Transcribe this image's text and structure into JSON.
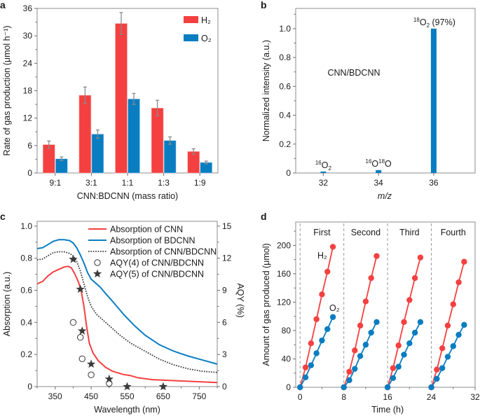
{
  "colors": {
    "red": "#f44040",
    "blue": "#0a7dc1",
    "dark": "#333333",
    "err": "#8a8a8a",
    "dash": "#9a9a9a"
  },
  "chart_data": [
    {
      "panel": "a",
      "type": "bar",
      "xlabel": "CNN:BDCNN (mass ratio)",
      "ylabel": "Rate of gas production (μmol h⁻¹)",
      "categories": [
        "9:1",
        "3:1",
        "1:1",
        "1:3",
        "1:9"
      ],
      "ylim": [
        0,
        36
      ],
      "yticks": [
        0,
        6,
        12,
        18,
        24,
        30,
        36
      ],
      "legend_position": "top-right",
      "series": [
        {
          "name": "H₂",
          "color_key": "red",
          "values": [
            6.2,
            17.0,
            32.7,
            14.2,
            4.7
          ],
          "errors": [
            0.8,
            1.8,
            2.4,
            1.7,
            0.6
          ]
        },
        {
          "name": "O₂",
          "color_key": "blue",
          "values": [
            3.1,
            8.5,
            16.2,
            7.1,
            2.3
          ],
          "errors": [
            0.4,
            0.9,
            1.2,
            0.8,
            0.3
          ]
        }
      ]
    },
    {
      "panel": "b",
      "type": "bar",
      "xlabel": "m/z",
      "ylabel": "Normalized intensity (a.u.)",
      "annotation": "CNN/BDCNN",
      "xlim": [
        31,
        37.5
      ],
      "ylim": [
        0,
        1.14
      ],
      "xticks": [
        32,
        34,
        36
      ],
      "yticks": [
        0,
        0.2,
        0.4,
        0.6,
        0.8,
        1.0
      ],
      "ytick_labels": [
        "0",
        "0.2",
        "0.4",
        "0.6",
        "0.8",
        "1.0"
      ],
      "x": [
        32,
        34,
        36
      ],
      "values": [
        0.01,
        0.02,
        1.0
      ],
      "bar_labels": [
        {
          "pre": "16",
          "main": "O",
          "sub": "2",
          "post": ""
        },
        {
          "pre": "16",
          "main": "O",
          "sup2": "18",
          "main2": "O",
          "post": ""
        },
        {
          "pre": "18",
          "main": "O",
          "sub": "2",
          "post": " (97%)"
        }
      ]
    },
    {
      "panel": "c",
      "type": "line",
      "xlabel": "Wavelength (nm)",
      "ylabel": "Absorption (a.u.)",
      "y2label": "AQY (%)",
      "xlim": [
        300,
        800
      ],
      "ylim": [
        0,
        1.03
      ],
      "y2lim": [
        0,
        15.45
      ],
      "xticks": [
        350,
        450,
        550,
        650,
        750
      ],
      "yticks": [
        0,
        0.2,
        0.4,
        0.6,
        0.8,
        1.0
      ],
      "ytick_labels": [
        "0",
        "0.2",
        "0.4",
        "0.6",
        "0.8",
        "1.0"
      ],
      "y2ticks": [
        0,
        3,
        6,
        9,
        12,
        15
      ],
      "legend_position": "top-right",
      "series": [
        {
          "name": "Absorption of CNN",
          "style": "solid",
          "color_key": "red",
          "x": [
            300,
            315,
            330,
            345,
            360,
            375,
            385,
            395,
            405,
            415,
            422,
            430,
            437,
            445,
            455,
            470,
            490,
            510,
            540,
            560,
            580,
            620,
            680,
            740,
            800
          ],
          "y": [
            0.64,
            0.655,
            0.69,
            0.715,
            0.73,
            0.745,
            0.75,
            0.74,
            0.7,
            0.65,
            0.6,
            0.5,
            0.38,
            0.27,
            0.21,
            0.16,
            0.12,
            0.095,
            0.075,
            0.068,
            0.055,
            0.043,
            0.037,
            0.031,
            0.025
          ]
        },
        {
          "name": "Absorption of BDCNN",
          "style": "solid",
          "color_key": "blue",
          "x": [
            300,
            315,
            330,
            345,
            360,
            375,
            390,
            400,
            410,
            420,
            430,
            440,
            450,
            460,
            475,
            490,
            510,
            540,
            570,
            600,
            640,
            680,
            720,
            760,
            800
          ],
          "y": [
            0.86,
            0.865,
            0.885,
            0.905,
            0.915,
            0.915,
            0.91,
            0.895,
            0.865,
            0.82,
            0.77,
            0.71,
            0.67,
            0.65,
            0.62,
            0.58,
            0.53,
            0.45,
            0.38,
            0.32,
            0.26,
            0.22,
            0.19,
            0.165,
            0.14
          ]
        },
        {
          "name": "Absorption of CNN/BDCNN",
          "style": "dotted",
          "color_key": "dark",
          "x": [
            300,
            315,
            330,
            345,
            360,
            375,
            390,
            400,
            410,
            420,
            430,
            440,
            450,
            465,
            480,
            500,
            530,
            560,
            600,
            640,
            680,
            720,
            760,
            800
          ],
          "y": [
            0.79,
            0.795,
            0.815,
            0.835,
            0.84,
            0.84,
            0.83,
            0.815,
            0.78,
            0.72,
            0.64,
            0.56,
            0.5,
            0.45,
            0.42,
            0.38,
            0.32,
            0.27,
            0.22,
            0.17,
            0.135,
            0.11,
            0.095,
            0.088
          ]
        }
      ],
      "markers": [
        {
          "name": "AQY(4) of CNN/BDCNN",
          "symbol": "circle",
          "axis": "y2",
          "x": [
            400,
            420,
            425,
            450,
            500
          ],
          "y": [
            6.0,
            4.6,
            2.6,
            1.1,
            0.3
          ]
        },
        {
          "name": "AQY(5) of CNN/BDCNN",
          "symbol": "star",
          "axis": "y2",
          "x": [
            400,
            420,
            425,
            450,
            500,
            550,
            650
          ],
          "y": [
            11.9,
            9.1,
            5.2,
            2.1,
            0.7,
            0.0,
            0.0
          ]
        }
      ]
    },
    {
      "panel": "d",
      "type": "line",
      "xlabel": "Time (h)",
      "ylabel": "Amount of gas produced (μmol)",
      "xlim": [
        -0.8,
        32
      ],
      "ylim": [
        0,
        233
      ],
      "xticks": [
        0,
        8,
        16,
        24,
        32
      ],
      "yticks": [
        0,
        40,
        80,
        120,
        160,
        200
      ],
      "cycle_boundaries": [
        0,
        8,
        16,
        24
      ],
      "cycle_labels": [
        "First",
        "Second",
        "Third",
        "Fourth"
      ],
      "series_labels": {
        "H2": "H₂",
        "O2": "O₂"
      },
      "series": [
        {
          "name": "H₂",
          "color_key": "red",
          "cycles": [
            {
              "x": [
                0,
                1,
                2,
                3,
                4,
                5,
                6
              ],
              "y": [
                0,
                28,
                62,
                96,
                131,
                163,
                198
              ]
            },
            {
              "x": [
                8,
                9,
                10,
                11,
                12,
                13,
                14
              ],
              "y": [
                0,
                22,
                52,
                87,
                121,
                154,
                185
              ]
            },
            {
              "x": [
                16,
                17,
                18,
                19,
                20,
                21,
                22
              ],
              "y": [
                0,
                27,
                59,
                92,
                123,
                154,
                183
              ]
            },
            {
              "x": [
                24,
                25,
                26,
                27,
                28,
                29,
                30
              ],
              "y": [
                0,
                25,
                55,
                87,
                117,
                148,
                177
              ]
            }
          ]
        },
        {
          "name": "O₂",
          "color_key": "blue",
          "cycles": [
            {
              "x": [
                0,
                1,
                2,
                3,
                4,
                5,
                6
              ],
              "y": [
                0,
                14,
                31,
                48,
                66,
                82,
                99
              ]
            },
            {
              "x": [
                8,
                9,
                10,
                11,
                12,
                13,
                14
              ],
              "y": [
                0,
                10,
                26,
                44,
                60,
                77,
                92
              ]
            },
            {
              "x": [
                16,
                17,
                18,
                19,
                20,
                21,
                22
              ],
              "y": [
                0,
                13,
                29,
                46,
                62,
                77,
                92
              ]
            },
            {
              "x": [
                24,
                25,
                26,
                27,
                28,
                29,
                30
              ],
              "y": [
                0,
                12,
                27,
                43,
                58,
                74,
                88
              ]
            }
          ]
        }
      ]
    }
  ],
  "panels": {
    "a": "a",
    "b": "b",
    "c": "c",
    "d": "d"
  }
}
